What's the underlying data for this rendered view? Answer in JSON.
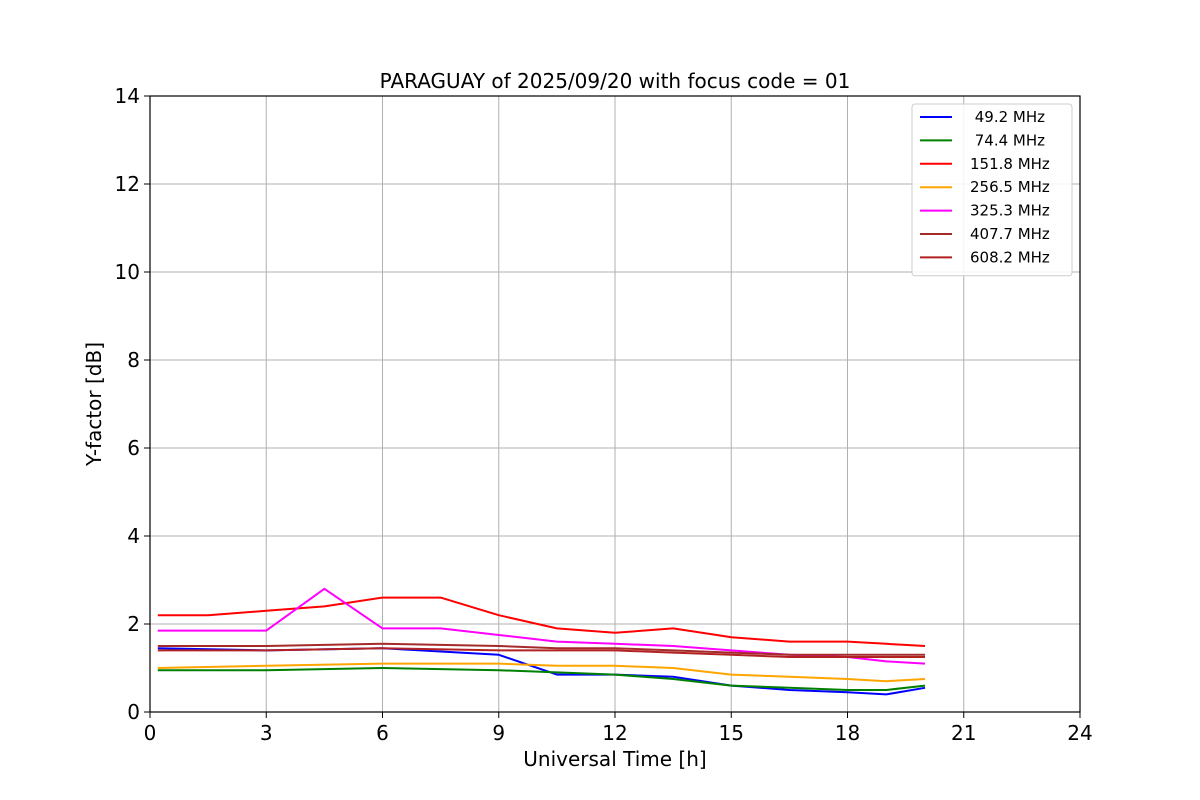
{
  "chart_data": {
    "type": "line",
    "title": "PARAGUAY of 2025/09/20 with focus code = 01",
    "xlabel": "Universal Time [h]",
    "ylabel": "Y-factor [dB]",
    "xlim": [
      0,
      24
    ],
    "ylim": [
      0,
      14
    ],
    "xticks": [
      0,
      3,
      6,
      9,
      12,
      15,
      18,
      21,
      24
    ],
    "yticks": [
      0,
      2,
      4,
      6,
      8,
      10,
      12,
      14
    ],
    "grid": true,
    "legend_position": "top-right",
    "series": [
      {
        "name": " 49.2 MHz",
        "color": "#0000ff",
        "x": [
          0.2,
          3,
          6,
          9,
          10.5,
          12,
          13.5,
          15,
          16.5,
          18,
          19,
          20
        ],
        "y": [
          1.45,
          1.4,
          1.45,
          1.3,
          0.85,
          0.85,
          0.8,
          0.6,
          0.5,
          0.45,
          0.4,
          0.55
        ]
      },
      {
        "name": " 74.4 MHz",
        "color": "#008000",
        "x": [
          0.2,
          3,
          6,
          9,
          10.5,
          12,
          13.5,
          15,
          16.5,
          18,
          19,
          20
        ],
        "y": [
          0.95,
          0.95,
          1.0,
          0.95,
          0.9,
          0.85,
          0.75,
          0.6,
          0.55,
          0.5,
          0.5,
          0.6
        ]
      },
      {
        "name": "151.8 MHz",
        "color": "#ff0000",
        "x": [
          0.2,
          1.5,
          3,
          4.5,
          6,
          7.5,
          9,
          10.5,
          12,
          13.5,
          15,
          16.5,
          18,
          19,
          20
        ],
        "y": [
          2.2,
          2.2,
          2.3,
          2.4,
          2.6,
          2.6,
          2.2,
          1.9,
          1.8,
          1.9,
          1.7,
          1.6,
          1.6,
          1.55,
          1.5
        ]
      },
      {
        "name": "256.5 MHz",
        "color": "#ffa500",
        "x": [
          0.2,
          3,
          6,
          9,
          10.5,
          12,
          13.5,
          15,
          16.5,
          18,
          19,
          20
        ],
        "y": [
          1.0,
          1.05,
          1.1,
          1.1,
          1.05,
          1.05,
          1.0,
          0.85,
          0.8,
          0.75,
          0.7,
          0.75
        ]
      },
      {
        "name": "325.3 MHz",
        "color": "#ff00ff",
        "x": [
          0.2,
          3,
          4.5,
          6,
          7.5,
          9,
          10.5,
          12,
          13.5,
          15,
          16.5,
          18,
          19,
          20
        ],
        "y": [
          1.85,
          1.85,
          2.8,
          1.9,
          1.9,
          1.75,
          1.6,
          1.55,
          1.5,
          1.4,
          1.3,
          1.25,
          1.15,
          1.1
        ]
      },
      {
        "name": "407.7 MHz",
        "color": "#a52a2a",
        "x": [
          0.2,
          3,
          6,
          9,
          10.5,
          12,
          13.5,
          15,
          16.5,
          18,
          19,
          20
        ],
        "y": [
          1.5,
          1.5,
          1.55,
          1.5,
          1.45,
          1.45,
          1.4,
          1.35,
          1.3,
          1.3,
          1.3,
          1.3
        ]
      },
      {
        "name": "608.2 MHz",
        "color": "#b22222",
        "x": [
          0.2,
          3,
          6,
          9,
          10.5,
          12,
          13.5,
          15,
          16.5,
          18,
          19,
          20
        ],
        "y": [
          1.4,
          1.4,
          1.45,
          1.4,
          1.4,
          1.4,
          1.35,
          1.3,
          1.25,
          1.25,
          1.25,
          1.25
        ]
      }
    ]
  }
}
